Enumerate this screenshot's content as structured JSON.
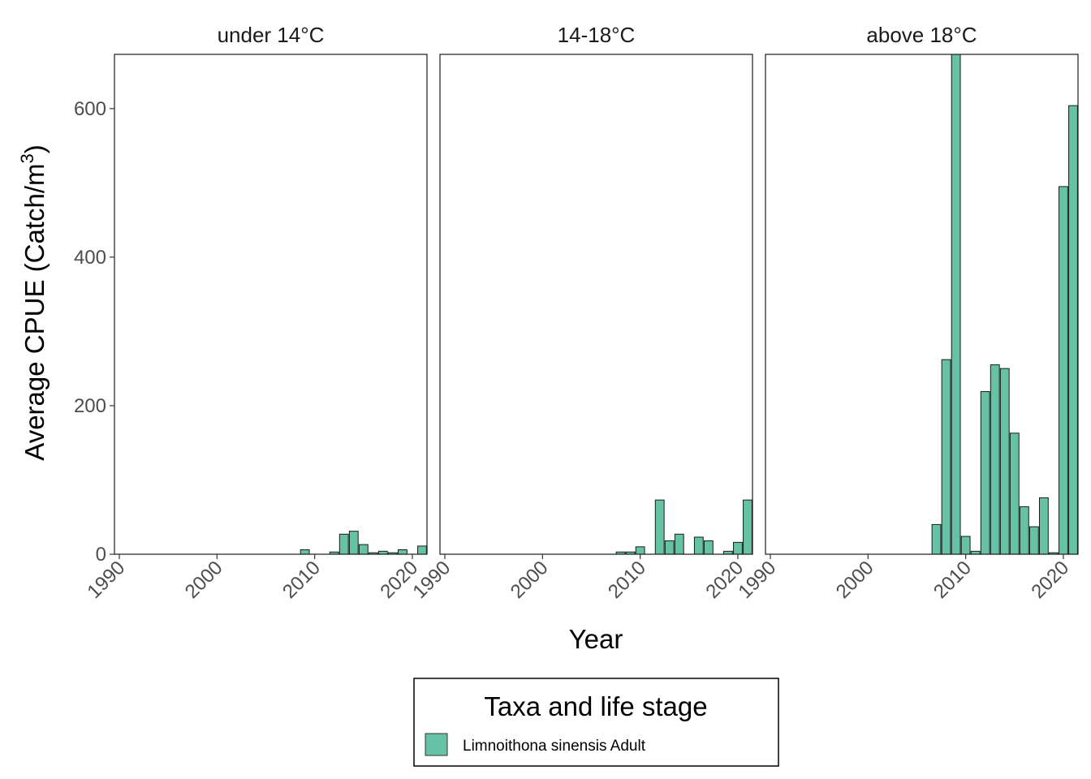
{
  "chart_data": {
    "type": "bar",
    "facets": [
      "under 14°C",
      "14-18°C",
      "above 18°C"
    ],
    "xlabel": "Year",
    "ylabel": "Average CPUE (Catch/m",
    "ylabel_superscript": "3",
    "ylabel_close": ")",
    "xlim": [
      1989.5,
      2021.5
    ],
    "ylim": [
      0,
      673
    ],
    "x_ticks": [
      1990,
      2000,
      2010,
      2020
    ],
    "y_ticks": [
      0,
      200,
      400,
      600
    ],
    "grid": false,
    "bar_color": "#66C2A5",
    "legend": {
      "title": "Taxa and life stage",
      "position": "bottom",
      "entries": [
        {
          "label": "Limnoithona sinensis Adult",
          "color": "#66C2A5"
        }
      ]
    },
    "series": [
      {
        "facet": "under 14°C",
        "x": [
          2009,
          2012,
          2013,
          2014,
          2015,
          2016,
          2017,
          2018,
          2019,
          2021
        ],
        "values": [
          6,
          3,
          27,
          31,
          13,
          2,
          4,
          2,
          6,
          11
        ]
      },
      {
        "facet": "14-18°C",
        "x": [
          2008,
          2009,
          2010,
          2012,
          2013,
          2014,
          2016,
          2017,
          2019,
          2020,
          2021
        ],
        "values": [
          3,
          3,
          10,
          73,
          18,
          27,
          23,
          18,
          4,
          16,
          73
        ]
      },
      {
        "facet": "above 18°C",
        "x": [
          2007,
          2008,
          2009,
          2010,
          2011,
          2012,
          2013,
          2014,
          2015,
          2016,
          2017,
          2018,
          2019,
          2020,
          2021
        ],
        "values": [
          40,
          262,
          673,
          24,
          4,
          219,
          255,
          250,
          163,
          64,
          37,
          76,
          2,
          495,
          604
        ]
      }
    ]
  }
}
